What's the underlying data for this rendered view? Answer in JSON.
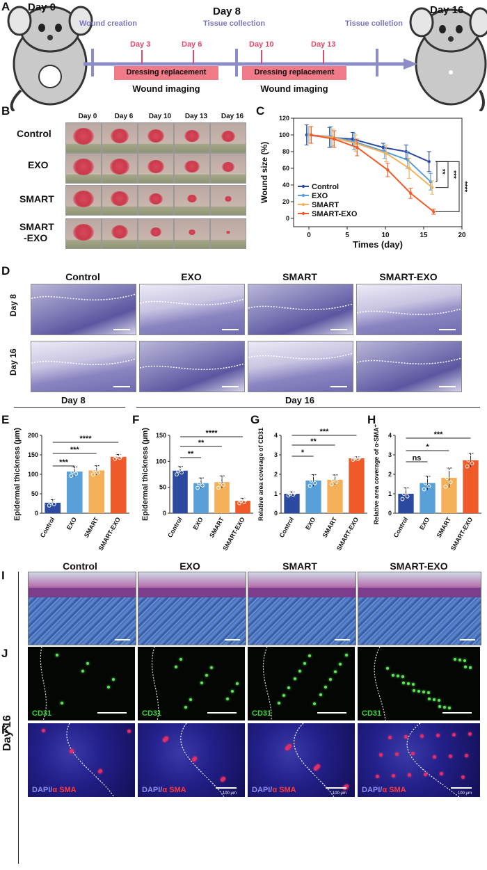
{
  "panels": {
    "A": "A",
    "B": "B",
    "C": "C",
    "D": "D",
    "E": "E",
    "F": "F",
    "G": "G",
    "H": "H",
    "I": "I",
    "J": "J",
    "K": "K"
  },
  "timeline": {
    "day0": "Day 0",
    "day8": "Day 8",
    "day16": "Day 16",
    "wound_creation": "Wound creation",
    "tissue_collection": "Tissue collection",
    "tissue_colletion": "Tissue colletion",
    "d3": "Day 3",
    "d6": "Day 6",
    "d10": "Day 10",
    "d13": "Day 13",
    "dressing1": "Dressing replacement",
    "dressing2": "Dressing replacement",
    "imaging1": "Wound imaging",
    "imaging2": "Wound imaging"
  },
  "photo_grid": {
    "days": [
      "Day 0",
      "Day 6",
      "Day 10",
      "Day 13",
      "Day 16"
    ],
    "rows": [
      "Control",
      "EXO",
      "SMART",
      "SMART",
      "-EXO"
    ]
  },
  "histo": {
    "groups": [
      "Control",
      "EXO",
      "SMART",
      "SMART-EXO"
    ],
    "rows": [
      "Day 8",
      "Day 16"
    ]
  },
  "section_labels": {
    "day8": "Day 8",
    "day16": "Day 16",
    "day16_side": "Day 16"
  },
  "if_labels": {
    "cd31": "CD31",
    "dapi": "DAPI/",
    "asma": "α SMA",
    "scale": "100 μm"
  },
  "colors": {
    "control": "#2b4aa0",
    "exo": "#5aa0d8",
    "smart": "#f5b05a",
    "smart_exo": "#ef5a28"
  },
  "chart_data": [
    {
      "type": "line",
      "panel": "C",
      "xlabel": "Times (day)",
      "ylabel": "Wound size (%)",
      "xlim": [
        -2,
        20
      ],
      "ylim": [
        -10,
        120
      ],
      "xticks": [
        "0",
        "5",
        "10",
        "15",
        "20"
      ],
      "yticks": [
        "0",
        "20",
        "40",
        "60",
        "80",
        "100",
        "120"
      ],
      "x": [
        0,
        3,
        6,
        10,
        13,
        16
      ],
      "series": [
        {
          "name": "Control",
          "values": [
            100,
            97,
            95,
            85,
            80,
            68
          ],
          "err": [
            12,
            12,
            8,
            5,
            8,
            12
          ]
        },
        {
          "name": "EXO",
          "values": [
            100,
            98,
            92,
            80,
            70,
            44
          ],
          "err": [
            10,
            12,
            10,
            8,
            10,
            10
          ]
        },
        {
          "name": "SMART",
          "values": [
            100,
            97,
            90,
            78,
            60,
            37
          ],
          "err": [
            10,
            10,
            10,
            10,
            12,
            8
          ]
        },
        {
          "name": "SMART-EXO",
          "values": [
            100,
            95,
            85,
            58,
            30,
            8
          ],
          "err": [
            10,
            10,
            10,
            8,
            6,
            3
          ]
        }
      ],
      "significance": [
        "**",
        "***",
        "****"
      ],
      "legend_position": "bottom-left"
    },
    {
      "type": "bar",
      "panel": "E",
      "ylabel": "Epidermal thickness (μm)",
      "categories": [
        "Control",
        "EXO",
        "SMART",
        "SMART-EXO"
      ],
      "values": [
        27,
        107,
        110,
        145
      ],
      "err": [
        8,
        12,
        12,
        6
      ],
      "ylim": [
        0,
        200
      ],
      "yticks": [
        "0",
        "50",
        "100",
        "150",
        "200"
      ],
      "significance": [
        "***",
        "***",
        "****"
      ]
    },
    {
      "type": "bar",
      "panel": "F",
      "ylabel": "Epidermal thickness (μm)",
      "categories": [
        "Control",
        "EXO",
        "SMART",
        "SMART-EXO"
      ],
      "values": [
        82,
        58,
        60,
        24
      ],
      "err": [
        8,
        10,
        12,
        5
      ],
      "ylim": [
        0,
        150
      ],
      "yticks": [
        "0",
        "50",
        "100",
        "150"
      ],
      "significance": [
        "**",
        "**",
        "****"
      ]
    },
    {
      "type": "bar",
      "panel": "G",
      "ylabel": "Relative area coverage of CD31",
      "categories": [
        "Control",
        "EXO",
        "SMART",
        "SMART-EXO"
      ],
      "values": [
        1.0,
        1.68,
        1.72,
        2.82
      ],
      "err": [
        0.1,
        0.3,
        0.25,
        0.08
      ],
      "ylim": [
        0,
        4
      ],
      "yticks": [
        "0",
        "1",
        "2",
        "3",
        "4"
      ],
      "significance": [
        "*",
        "**",
        "***"
      ]
    },
    {
      "type": "bar",
      "panel": "H",
      "ylabel": "Relative area coverage of α-SMA⁺",
      "categories": [
        "Control",
        "EXO",
        "SMART",
        "SMART-EXO"
      ],
      "values": [
        1.0,
        1.55,
        1.82,
        2.72
      ],
      "err": [
        0.3,
        0.35,
        0.5,
        0.35
      ],
      "ylim": [
        0,
        4
      ],
      "yticks": [
        "0",
        "1",
        "2",
        "3",
        "4"
      ],
      "significance": [
        "ns",
        "*",
        "***"
      ]
    }
  ]
}
